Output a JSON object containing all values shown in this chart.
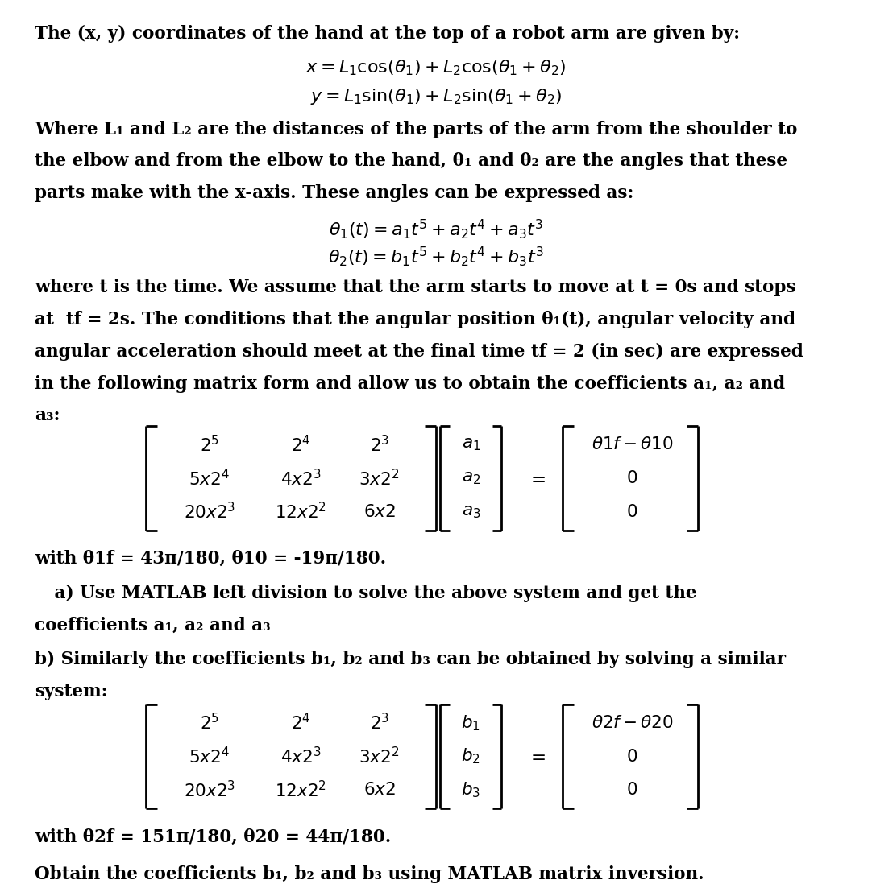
{
  "bg_color": "#ffffff",
  "text_color": "#000000",
  "fig_width": 10.82,
  "fig_height": 10.98,
  "font_family": "DejaVu Serif",
  "font_weight": "bold",
  "body_fontsize": 15.5,
  "math_fontsize": 16.0,
  "line1": "The (x, y) coordinates of the hand at the top of a robot arm are given by:",
  "line_eq1": "$x = L_1 \\cos(\\theta_1) + L_2 \\cos(\\theta_1 + \\theta_2)$",
  "line_eq2": "$y = L_1 \\sin(\\theta_1) + L_2\\sin(\\theta_1 + \\theta_2)$",
  "line2": "Where L₁ and L₂ are the distances of the parts of the arm from the shoulder to",
  "line3": "the elbow and from the elbow to the hand, θ₁ and θ₂ are the angles that these",
  "line4": "parts make with the x-axis. These angles can be expressed as:",
  "line_eq3": "$\\theta_1(t) = a_1t^5 + a_2t^4 + a_3t^3$",
  "line_eq4": "$\\theta_2(t) = b_1t^5 + b_2t^4 + b_3t^3$",
  "line5": "where t is the time. We assume that the arm starts to move at t = 0s and stops",
  "line6": "at  tf = 2s. The conditions that the angular position θ₁(t), angular velocity and",
  "line7": "angular acceleration should meet at the final time tf = 2 (in sec) are expressed",
  "line8": "in the following matrix form and allow us to obtain the coefficients a₁, a₂ and",
  "line9": "a₃:",
  "with1": "with θ1f = 43π/180, θ10 = -19π/180.",
  "line_a1": " a) Use MATLAB left division to solve the above system and get the",
  "line_a2": "coefficients a₁, a₂ and a₃",
  "line_b1": "b) Similarly the coefficients b₁, b₂ and b₃ can be obtained by solving a similar",
  "line_b2": "system:",
  "with2": "with θ2f = 151π/180, θ20 = 44π/180.",
  "line_final": "Obtain the coefficients b₁, b₂ and b₃ using MATLAB matrix inversion."
}
